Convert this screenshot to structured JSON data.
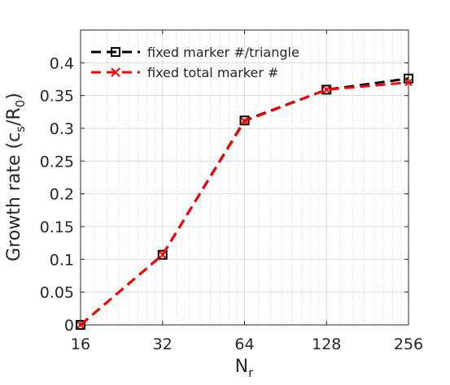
{
  "chart_data": {
    "type": "line",
    "x_scale": "log2",
    "x": [
      16,
      32,
      64,
      128,
      256
    ],
    "xticks": [
      "16",
      "32",
      "64",
      "128",
      "256"
    ],
    "xlim": [
      16,
      256
    ],
    "ylim": [
      0,
      0.45
    ],
    "yticks": [
      "0",
      "0.05",
      "0.1",
      "0.15",
      "0.2",
      "0.25",
      "0.3",
      "0.35",
      "0.4"
    ],
    "xlabel": "N",
    "xlabel_sub": "r",
    "ylabel": "Growth rate (c",
    "ylabel_sub1": "s",
    "ylabel_mid": "/R",
    "ylabel_sub2": "0",
    "ylabel_end": ")",
    "grid": true,
    "legend_position": "top-left",
    "series": [
      {
        "name": "fixed marker #/triangle",
        "values": [
          0.0,
          0.107,
          0.312,
          0.359,
          0.376
        ],
        "color": "#000000",
        "marker": "square",
        "line": "dashed"
      },
      {
        "name": "fixed total marker #",
        "values": [
          0.0,
          0.107,
          0.311,
          0.359,
          0.37
        ],
        "color": "#ff0000",
        "marker": "x",
        "line": "dashed"
      }
    ]
  }
}
